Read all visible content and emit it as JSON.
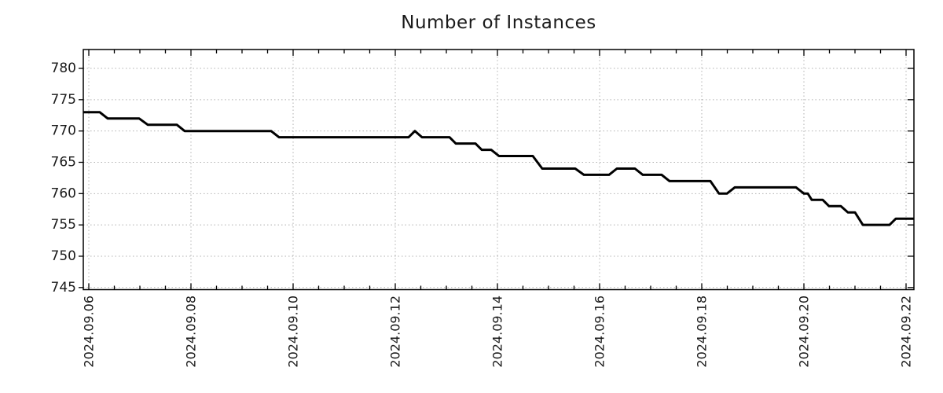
{
  "chart_data": {
    "type": "line",
    "title": "Number of Instances",
    "x_axis": {
      "epoch_label": "2024.09.06",
      "tick_labels": [
        "2024.09.06",
        "2024.09.08",
        "2024.09.10",
        "2024.09.12",
        "2024.09.14",
        "2024.09.16",
        "2024.09.18",
        "2024.09.20",
        "2024.09.22"
      ],
      "tick_positions_days": [
        0,
        2,
        4,
        6,
        8,
        10,
        12,
        14,
        16
      ],
      "minor_tick_step_days": 0.5,
      "range_days": [
        -0.108,
        16.154
      ]
    },
    "y_axis": {
      "tick_labels": [
        "745",
        "750",
        "755",
        "760",
        "765",
        "770",
        "775",
        "780"
      ],
      "tick_values": [
        745,
        750,
        755,
        760,
        765,
        770,
        775,
        780
      ],
      "range": [
        744.7,
        783.0
      ]
    },
    "series": [
      {
        "name": "instances",
        "color": "#000000",
        "points_t_days_value": [
          [
            -0.108,
            773
          ],
          [
            0.215,
            773
          ],
          [
            0.369,
            772
          ],
          [
            0.985,
            772
          ],
          [
            1.154,
            771
          ],
          [
            1.723,
            771
          ],
          [
            1.877,
            770
          ],
          [
            3.569,
            770
          ],
          [
            3.723,
            769
          ],
          [
            6.262,
            769
          ],
          [
            6.385,
            770
          ],
          [
            6.523,
            769
          ],
          [
            7.062,
            769
          ],
          [
            7.185,
            768
          ],
          [
            7.569,
            768
          ],
          [
            7.692,
            767
          ],
          [
            7.877,
            767
          ],
          [
            8.031,
            766
          ],
          [
            8.692,
            766
          ],
          [
            8.877,
            764
          ],
          [
            9.523,
            764
          ],
          [
            9.692,
            763
          ],
          [
            10.185,
            763
          ],
          [
            10.338,
            764
          ],
          [
            10.692,
            764
          ],
          [
            10.846,
            763
          ],
          [
            11.215,
            763
          ],
          [
            11.369,
            762
          ],
          [
            12.169,
            762
          ],
          [
            12.338,
            760
          ],
          [
            12.492,
            760
          ],
          [
            12.646,
            761
          ],
          [
            13.846,
            761
          ],
          [
            14.0,
            760
          ],
          [
            14.077,
            760
          ],
          [
            14.154,
            759
          ],
          [
            14.369,
            759
          ],
          [
            14.492,
            758
          ],
          [
            14.723,
            758
          ],
          [
            14.862,
            757
          ],
          [
            15.0,
            757
          ],
          [
            15.154,
            755
          ],
          [
            15.677,
            755
          ],
          [
            15.8,
            756
          ],
          [
            16.154,
            756
          ]
        ]
      }
    ],
    "grid": {
      "show": true,
      "color": "#b0b0b0",
      "style": "dotted"
    },
    "legend": {
      "show": false
    },
    "colors": {
      "line": "#000000",
      "axis": "#000000",
      "text": "#1a1a1a",
      "background": "#ffffff"
    }
  }
}
